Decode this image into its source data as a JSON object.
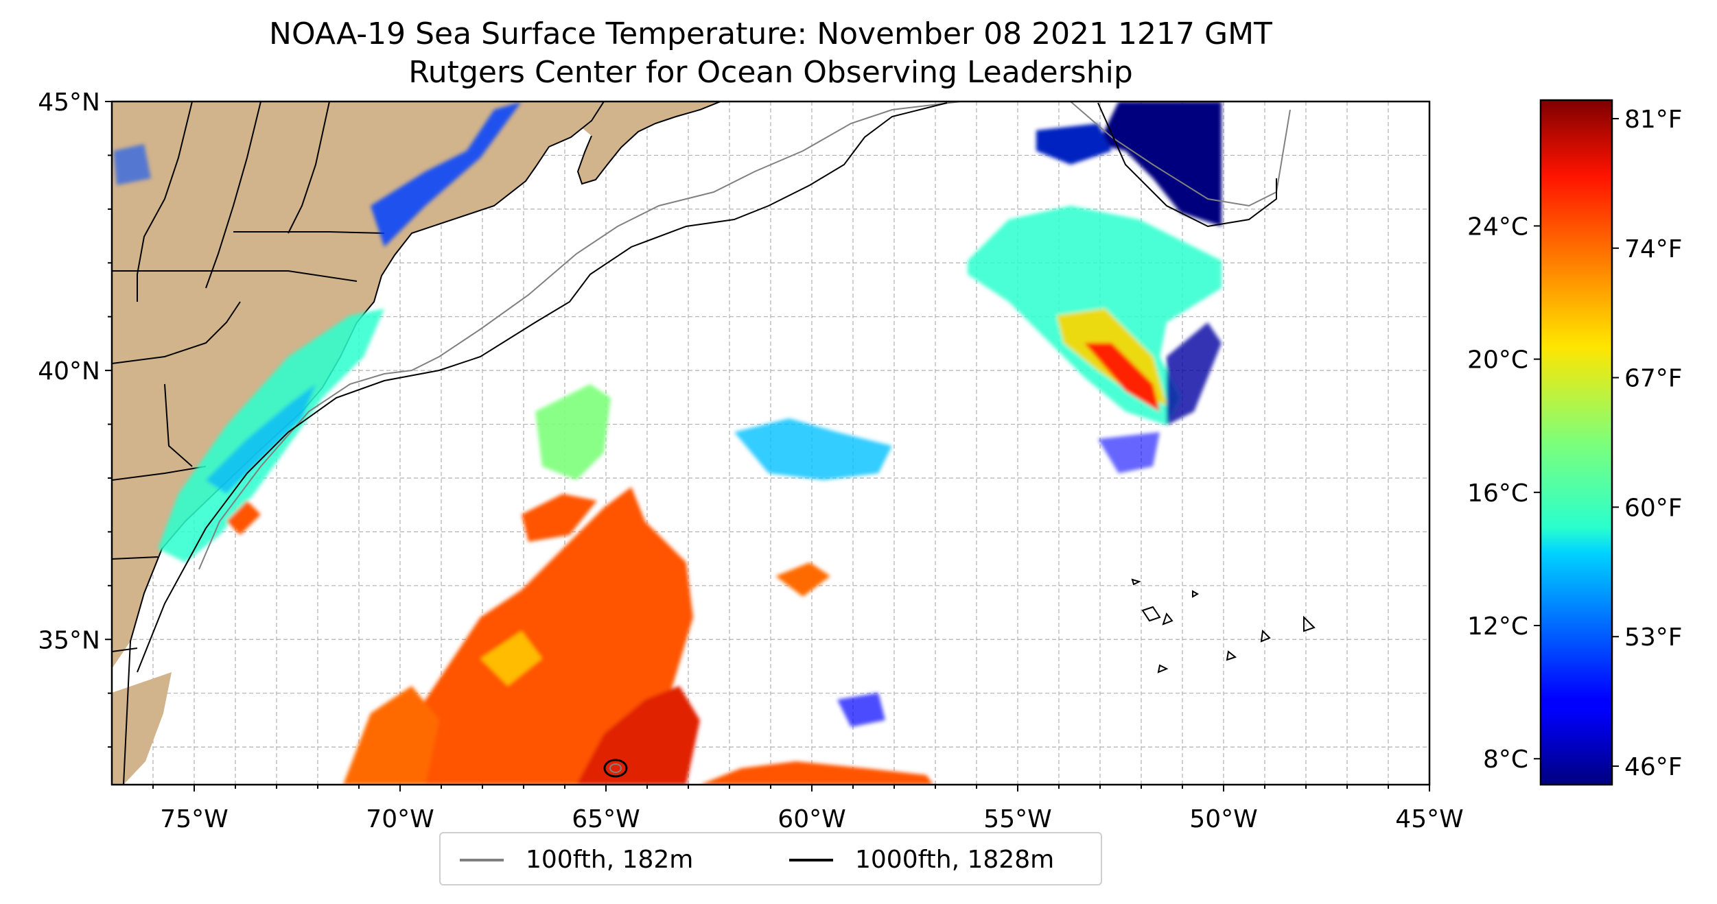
{
  "title": {
    "line1": "NOAA-19 Sea Surface Temperature: November 08 2021 1217 GMT",
    "line2": "Rutgers Center for Ocean Observing Leadership"
  },
  "map": {
    "lon_range": [
      -77,
      -45
    ],
    "lat_range": [
      32.3,
      45
    ],
    "x_ticks": [
      {
        "lon": -75,
        "label": "75°W"
      },
      {
        "lon": -70,
        "label": "70°W"
      },
      {
        "lon": -65,
        "label": "65°W"
      },
      {
        "lon": -60,
        "label": "60°W"
      },
      {
        "lon": -55,
        "label": "55°W"
      },
      {
        "lon": -50,
        "label": "50°W"
      },
      {
        "lon": -45,
        "label": "45°W"
      }
    ],
    "y_ticks": [
      {
        "lat": 45,
        "label": "45°N"
      },
      {
        "lat": 40,
        "label": "40°N"
      },
      {
        "lat": 35,
        "label": "35°N"
      }
    ],
    "grid": true,
    "land_color": "#d2b48c",
    "grid_color": "#b0b0b0"
  },
  "colorbar": {
    "colormap": "jet",
    "celsius_ticks": [
      {
        "c": 8,
        "label": "8°C"
      },
      {
        "c": 12,
        "label": "12°C"
      },
      {
        "c": 16,
        "label": "16°C"
      },
      {
        "c": 20,
        "label": "20°C"
      },
      {
        "c": 24,
        "label": "24°C"
      }
    ],
    "fahrenheit_ticks": [
      {
        "f": 46,
        "label": "46°F"
      },
      {
        "f": 53,
        "label": "53°F"
      },
      {
        "f": 60,
        "label": "60°F"
      },
      {
        "f": 67,
        "label": "67°F"
      },
      {
        "f": 74,
        "label": "74°F"
      },
      {
        "f": 81,
        "label": "81°F"
      }
    ],
    "range_f": [
      45,
      82
    ]
  },
  "legend": {
    "items": [
      {
        "label": "100fth, 182m",
        "color": "#808080"
      },
      {
        "label": "1000fth, 1828m",
        "color": "#000000"
      }
    ]
  }
}
